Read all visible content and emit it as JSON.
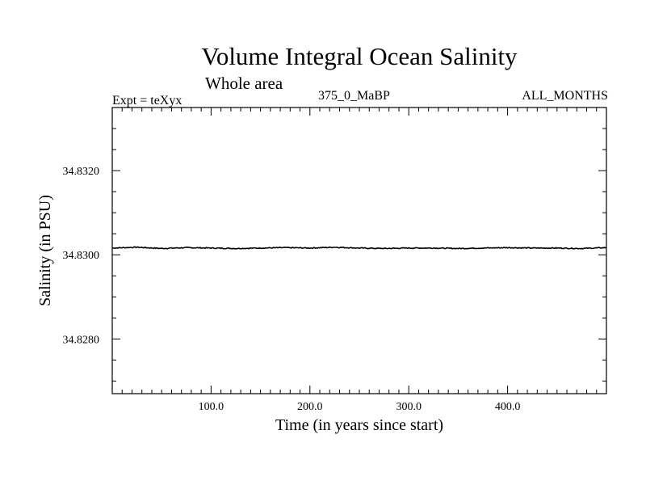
{
  "header": {
    "title": "Volume Integral Ocean Salinity",
    "subtitle": "Whole area",
    "experiment": "Expt = teXyx",
    "run_label": "375_0_MaBP",
    "period": "ALL_MONTHS"
  },
  "colors": {
    "line": "#000000",
    "frame": "#000000",
    "background": "#ffffff"
  },
  "chart_data": {
    "type": "line",
    "title": "Volume Integral Ocean Salinity",
    "subtitle": "Whole area",
    "xlabel": "Time (in years since start)",
    "ylabel": "Salinity (in PSU)",
    "xlim": [
      0,
      500
    ],
    "ylim": [
      34.8267,
      34.8335
    ],
    "x_ticks": [
      100,
      200,
      300,
      400
    ],
    "x_tick_labels": [
      "100.0",
      "200.0",
      "300.0",
      "400.0"
    ],
    "y_ticks": [
      34.828,
      34.83,
      34.832
    ],
    "y_tick_labels": [
      "34.8280",
      "34.8300",
      "34.8320"
    ],
    "grid": false,
    "series": [
      {
        "x": [
          0,
          25,
          50,
          75,
          100,
          125,
          150,
          175,
          200,
          225,
          250,
          275,
          300,
          325,
          350,
          375,
          400,
          425,
          450,
          475,
          500
        ],
        "values": [
          34.83016,
          34.83018,
          34.83015,
          34.83017,
          34.83016,
          34.83015,
          34.83016,
          34.83017,
          34.83016,
          34.83018,
          34.83016,
          34.83015,
          34.83016,
          34.83016,
          34.83015,
          34.83016,
          34.83017,
          34.83016,
          34.83016,
          34.83015,
          34.83017
        ]
      }
    ]
  }
}
